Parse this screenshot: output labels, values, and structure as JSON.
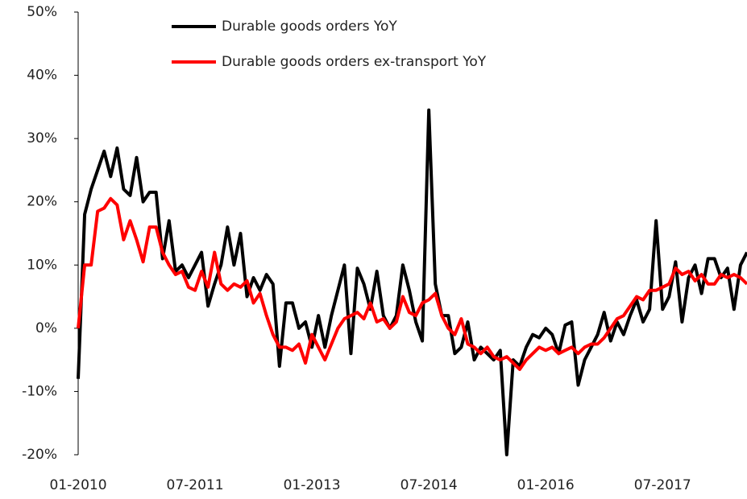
{
  "chart_data": {
    "type": "line",
    "categories": [
      "01-2010",
      null,
      null,
      null,
      null,
      null,
      null,
      null,
      null,
      null,
      null,
      null,
      null,
      null,
      null,
      null,
      null,
      null,
      "07-2011",
      null,
      null,
      null,
      null,
      null,
      null,
      null,
      null,
      null,
      null,
      null,
      null,
      null,
      null,
      null,
      null,
      null,
      "01-2013",
      null,
      null,
      null,
      null,
      null,
      null,
      null,
      null,
      null,
      null,
      null,
      null,
      null,
      null,
      null,
      null,
      null,
      "07-2014",
      null,
      null,
      null,
      null,
      null,
      null,
      null,
      null,
      null,
      null,
      null,
      null,
      null,
      null,
      null,
      null,
      null,
      "01-2016",
      null,
      null,
      null,
      null,
      null,
      null,
      null,
      null,
      null,
      null,
      null,
      null,
      null,
      null,
      null,
      null,
      null,
      "07-2017",
      null,
      null,
      null,
      null,
      null,
      null,
      null,
      null,
      null,
      null,
      null,
      null,
      null
    ],
    "series": [
      {
        "name": "Durable goods orders YoY",
        "color": "#000000",
        "values": [
          -8,
          18,
          22,
          25,
          28,
          24,
          28.5,
          22,
          21,
          27,
          20,
          21.5,
          21.5,
          11,
          17,
          9,
          10,
          8,
          10,
          12,
          3.5,
          7,
          10,
          16,
          10,
          15,
          5,
          8,
          6,
          8.5,
          7,
          -6,
          4,
          4,
          0,
          1,
          -3,
          2,
          -3,
          2,
          6,
          10,
          -4,
          9.5,
          7,
          3,
          9,
          2,
          0,
          2,
          10,
          6,
          1,
          -2,
          34.5,
          7,
          2,
          2,
          -4,
          -3,
          1,
          -5,
          -3,
          -4,
          -5,
          -3.5,
          -20,
          -5,
          -6,
          -3,
          -1,
          -1.5,
          0,
          -1,
          -4,
          0.5,
          1,
          -9,
          -5,
          -3,
          -1,
          2.5,
          -2,
          1,
          -1,
          2,
          4.5,
          1,
          3,
          17,
          3,
          5,
          10.5,
          1,
          8,
          10,
          5.5,
          11,
          11,
          8,
          9.5,
          3,
          10,
          12
        ]
      },
      {
        "name": "Durable goods orders ex-transport YoY",
        "color": "#ff0000",
        "values": [
          0,
          10,
          10,
          18.5,
          19,
          20.5,
          19.5,
          14,
          17,
          14,
          10.5,
          16,
          16,
          12,
          10,
          8.5,
          9,
          6.5,
          6,
          9,
          6.5,
          12,
          7,
          6,
          7,
          6.5,
          7.5,
          4,
          5.5,
          2,
          -1,
          -3,
          -3,
          -3.5,
          -2.5,
          -5.5,
          -1,
          -3,
          -5,
          -2.5,
          0,
          1.5,
          2,
          2.5,
          1.5,
          4,
          1,
          1.5,
          0,
          1,
          5,
          2.5,
          2,
          4,
          4.5,
          5.5,
          2,
          0,
          -1,
          1.5,
          -2.5,
          -3,
          -4,
          -3,
          -4.5,
          -5,
          -4.5,
          -5.5,
          -6.5,
          -5,
          -4,
          -3,
          -3.5,
          -3,
          -4,
          -3.5,
          -3,
          -4,
          -3,
          -2.5,
          -2.5,
          -1.5,
          0,
          1.5,
          2,
          3.5,
          5,
          4.5,
          6,
          6,
          6.5,
          7,
          9.5,
          8.5,
          9,
          7.5,
          8.5,
          7,
          7,
          8.5,
          8,
          8.5,
          8,
          7
        ]
      }
    ],
    "ylim": [
      -20,
      50
    ],
    "yticks": [
      {
        "value": -20,
        "label": "-20%"
      },
      {
        "value": -10,
        "label": "-10%"
      },
      {
        "value": 0,
        "label": "0%"
      },
      {
        "value": 10,
        "label": "10%"
      },
      {
        "value": 20,
        "label": "20%"
      },
      {
        "value": 30,
        "label": "30%"
      },
      {
        "value": 40,
        "label": "40%"
      },
      {
        "value": 50,
        "label": "50%"
      }
    ],
    "grid": false
  }
}
